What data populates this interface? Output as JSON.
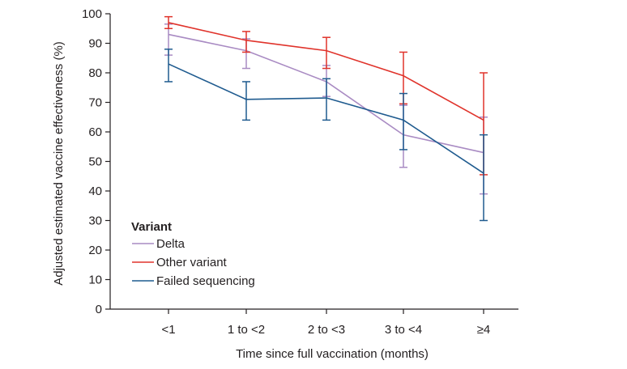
{
  "chart_data": {
    "type": "line",
    "title": "",
    "xlabel": "Time since full vaccination (months)",
    "ylabel": "Adjusted estimated vaccine effectiveness (%)",
    "categories": [
      "<1",
      "1 to <2",
      "2 to <3",
      "3 to <4",
      "≥4"
    ],
    "ylim": [
      0,
      100
    ],
    "yticks": [
      0,
      10,
      20,
      30,
      40,
      50,
      60,
      70,
      80,
      90,
      100
    ],
    "grid": false,
    "legend": {
      "title": "Variant",
      "position": "bottom-left"
    },
    "series": [
      {
        "name": "Delta",
        "color": "#a98bc3",
        "values": [
          93,
          87.5,
          77,
          59,
          53
        ],
        "lower": [
          86,
          81.5,
          72,
          48,
          39
        ],
        "upper": [
          96.5,
          91.5,
          82.5,
          69,
          65
        ]
      },
      {
        "name": "Other variant",
        "color": "#e0332b",
        "values": [
          97,
          91,
          87.5,
          79,
          64
        ],
        "lower": [
          95,
          87,
          81.5,
          69.5,
          45.5
        ],
        "upper": [
          99,
          94,
          92,
          87,
          80
        ]
      },
      {
        "name": "Failed sequencing",
        "color": "#1f5b8f",
        "values": [
          83,
          71,
          71.5,
          64,
          46
        ],
        "lower": [
          77,
          64,
          64,
          54,
          30
        ],
        "upper": [
          88,
          77,
          78,
          73,
          59
        ]
      }
    ]
  }
}
